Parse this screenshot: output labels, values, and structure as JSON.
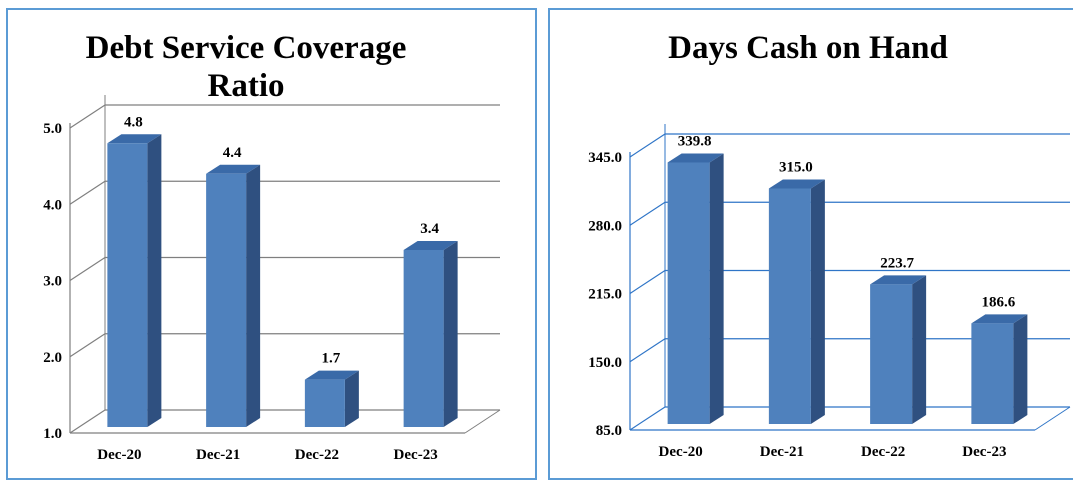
{
  "colors": {
    "bar_front": "#4f81bd",
    "bar_side": "#2f5080",
    "bar_top": "#3a6aa8",
    "grid_left": "#7f7f7f",
    "grid_right": "#2f75c7",
    "border": "#5b9bd5"
  },
  "chart_data": [
    {
      "type": "bar",
      "title_lines": [
        "Debt Service Coverage",
        "Ratio"
      ],
      "categories": [
        "Dec-20",
        "Dec-21",
        "Dec-22",
        "Dec-23"
      ],
      "values": [
        4.8,
        4.4,
        1.7,
        3.4
      ],
      "value_labels": [
        "4.8",
        "4.4",
        "1.7",
        "3.4"
      ],
      "yticks": [
        "1.0",
        "2.0",
        "3.0",
        "4.0",
        "5.0"
      ],
      "ylim": [
        1.0,
        5.0
      ],
      "grid": true,
      "three_d": true
    },
    {
      "type": "bar",
      "title_lines": [
        "Days Cash on Hand"
      ],
      "categories": [
        "Dec-20",
        "Dec-21",
        "Dec-22",
        "Dec-23"
      ],
      "values": [
        339.8,
        315.0,
        223.7,
        186.6
      ],
      "value_labels": [
        "339.8",
        "315.0",
        "223.7",
        "186.6"
      ],
      "yticks": [
        "85.0",
        "150.0",
        "215.0",
        "280.0",
        "345.0"
      ],
      "ylim": [
        85.0,
        345.0
      ],
      "grid": true,
      "three_d": true
    }
  ]
}
